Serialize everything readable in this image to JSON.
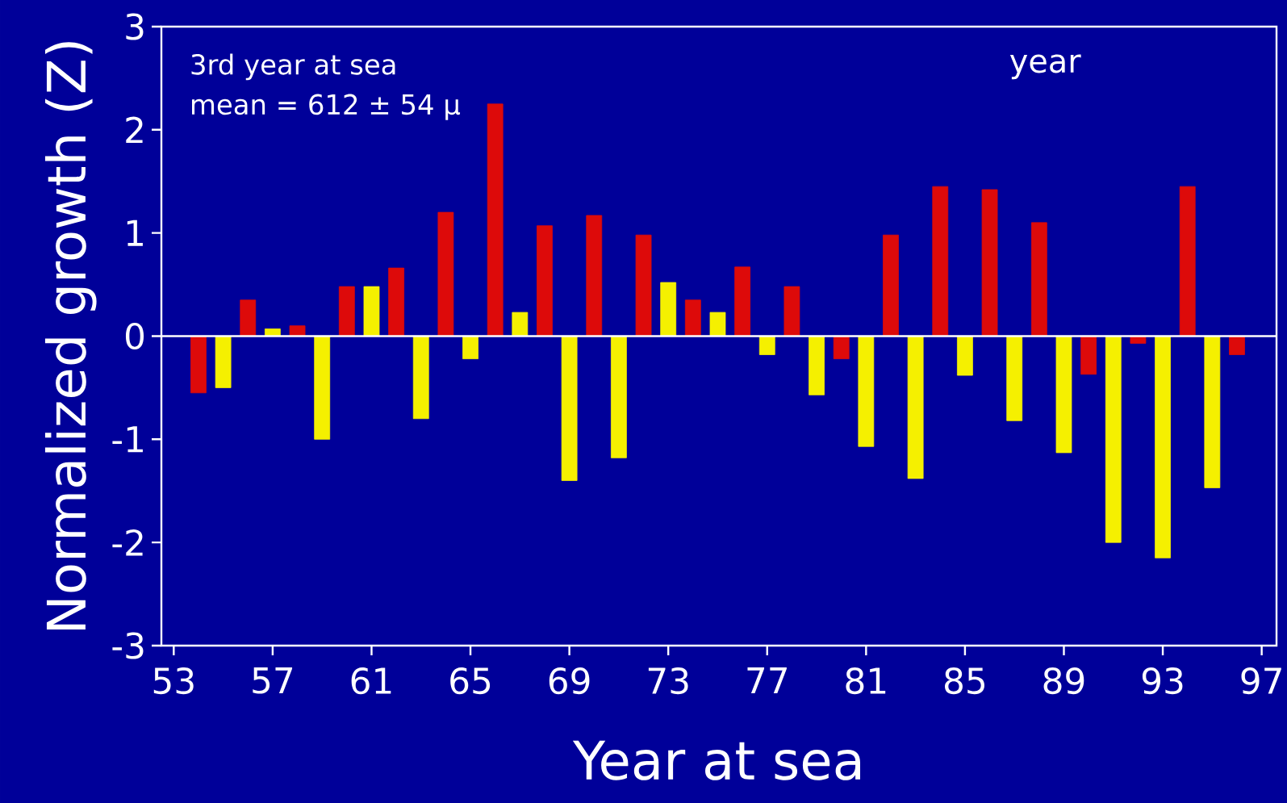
{
  "chart_data": {
    "type": "bar",
    "xlabel": "Year at sea",
    "ylabel": "Normalized growth (Z)",
    "annotations": [
      "3rd year  at sea",
      "mean = 612 ± 54 μ",
      "year"
    ],
    "x": [
      54,
      55,
      56,
      57,
      58,
      59,
      60,
      61,
      62,
      63,
      64,
      65,
      66,
      67,
      68,
      69,
      70,
      71,
      72,
      73,
      74,
      75,
      76,
      77,
      78,
      79,
      80,
      81,
      82,
      83,
      84,
      85,
      86,
      87,
      88,
      89,
      90,
      91,
      92,
      93,
      94,
      95,
      96
    ],
    "values": [
      -0.55,
      -0.5,
      0.35,
      0.07,
      0.1,
      -1.0,
      0.48,
      0.48,
      0.66,
      -0.8,
      1.2,
      -0.22,
      2.25,
      0.23,
      1.07,
      -1.4,
      1.17,
      -1.18,
      0.98,
      0.52,
      0.35,
      0.23,
      0.67,
      -0.18,
      0.48,
      -0.57,
      -0.22,
      -1.07,
      0.98,
      -1.38,
      1.45,
      -0.38,
      1.42,
      -0.82,
      1.1,
      -1.13,
      -0.37,
      -2.0,
      -0.07,
      -2.15,
      1.45,
      -1.47,
      -0.18
    ],
    "colors": [
      "#dd0a0a",
      "#f5f000",
      "#dd0a0a",
      "#f5f000",
      "#dd0a0a",
      "#f5f000",
      "#dd0a0a",
      "#f5f000",
      "#dd0a0a",
      "#f5f000",
      "#dd0a0a",
      "#f5f000",
      "#dd0a0a",
      "#f5f000",
      "#dd0a0a",
      "#f5f000",
      "#dd0a0a",
      "#f5f000",
      "#dd0a0a",
      "#f5f000",
      "#dd0a0a",
      "#f5f000",
      "#dd0a0a",
      "#f5f000",
      "#dd0a0a",
      "#f5f000",
      "#dd0a0a",
      "#f5f000",
      "#dd0a0a",
      "#f5f000",
      "#dd0a0a",
      "#f5f000",
      "#dd0a0a",
      "#f5f000",
      "#dd0a0a",
      "#f5f000",
      "#dd0a0a",
      "#f5f000",
      "#dd0a0a",
      "#f5f000",
      "#dd0a0a",
      "#f5f000",
      "#dd0a0a"
    ],
    "xlim": [
      52.5,
      97.6
    ],
    "ylim": [
      -3,
      3
    ],
    "xticks": [
      53,
      57,
      61,
      65,
      69,
      73,
      77,
      81,
      85,
      89,
      93,
      97
    ],
    "yticks": [
      -3,
      -2,
      -1,
      0,
      1,
      2,
      3
    ],
    "ref_lines": [
      {
        "axis": "y",
        "value": 0,
        "color": "#ffffff"
      }
    ],
    "grid": false
  }
}
